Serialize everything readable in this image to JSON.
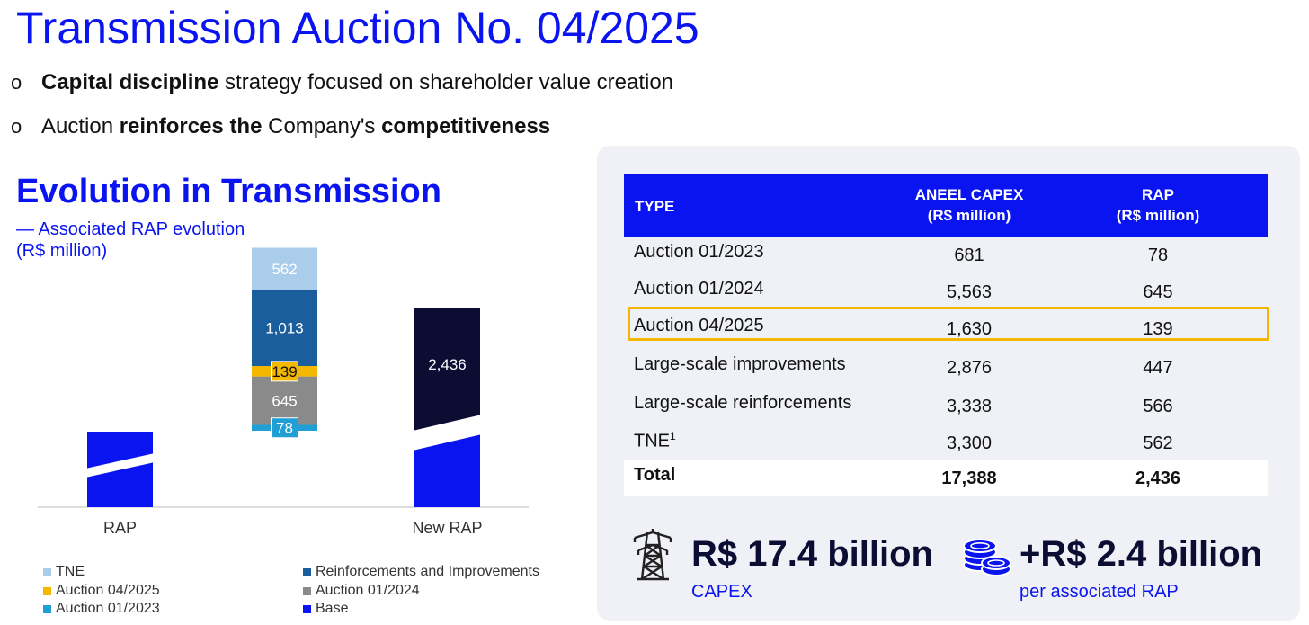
{
  "title": "Transmission Auction No. 04/2025",
  "bullets": [
    {
      "bold": "Capital discipline",
      "rest": " strategy focused on shareholder value creation"
    },
    {
      "p1": "Auction ",
      "b1": "reinforces the",
      "p2": " Company's ",
      "b2": "competitiveness"
    }
  ],
  "bullet_marker": "o",
  "chart_data": {
    "type": "bar",
    "title": "Evolution in Transmission",
    "subtitle": "— Associated RAP evolution",
    "unit": "(R$ million)",
    "categories": [
      "RAP",
      "",
      "New RAP"
    ],
    "axis_break": true,
    "waterfall_segments": [
      {
        "name": "Auction 01/2023",
        "value": 78,
        "color": "#1f9fd6"
      },
      {
        "name": "Auction 01/2024",
        "value": 645,
        "color": "#8a8a8a"
      },
      {
        "name": "Auction 04/2025",
        "value": 139,
        "color": "#f5b800"
      },
      {
        "name": "Reinforcements and Improvements",
        "value": 1013,
        "color": "#1b5e9e"
      },
      {
        "name": "TNE",
        "value": 562,
        "color": "#a9cdea"
      }
    ],
    "new_rap": {
      "value": 2436,
      "label": "2,436",
      "color": "#0b0d33"
    },
    "base_color": "#0a14f0",
    "legend": [
      {
        "name": "TNE",
        "color": "#a9cdea"
      },
      {
        "name": "Reinforcements and Improvements",
        "color": "#1b5e9e"
      },
      {
        "name": "Auction 04/2025",
        "color": "#f5b800"
      },
      {
        "name": "Auction 01/2024",
        "color": "#8a8a8a"
      },
      {
        "name": "Auction 01/2023",
        "color": "#1f9fd6"
      },
      {
        "name": "Base",
        "color": "#0a14f0"
      }
    ]
  },
  "table": {
    "headers": {
      "type": "TYPE",
      "capex_1": "ANEEL CAPEX",
      "capex_2": "(R$ million)",
      "rap_1": "RAP",
      "rap_2": "(R$ million)"
    },
    "rows": [
      {
        "type": "Auction 01/2023",
        "capex": "681",
        "rap": "78"
      },
      {
        "type": "Auction 01/2024",
        "capex": "5,563",
        "rap": "645"
      },
      {
        "type": "Auction 04/2025",
        "capex": "1,630",
        "rap": "139",
        "highlight": true
      },
      {
        "type": "Large-scale improvements",
        "capex": "2,876",
        "rap": "447"
      },
      {
        "type": "Large-scale reinforcements",
        "capex": "3,338",
        "rap": "566"
      },
      {
        "type": "TNE",
        "sup": "1",
        "capex": "3,300",
        "rap": "562"
      }
    ],
    "total": {
      "type": "Total",
      "capex": "17,388",
      "rap": "2,436"
    }
  },
  "kpis": {
    "capex_value": "R$ 17.4 billion",
    "capex_label": "CAPEX",
    "capex_icon": "transmission-tower-icon",
    "rap_value": "+R$ 2.4 billion",
    "rap_label": "per associated RAP",
    "rap_icon": "coins-icon"
  },
  "colors": {
    "brand_blue": "#0a14f0",
    "navy": "#0b0d33",
    "highlight": "#f5b800",
    "panel": "#eff1f6"
  }
}
